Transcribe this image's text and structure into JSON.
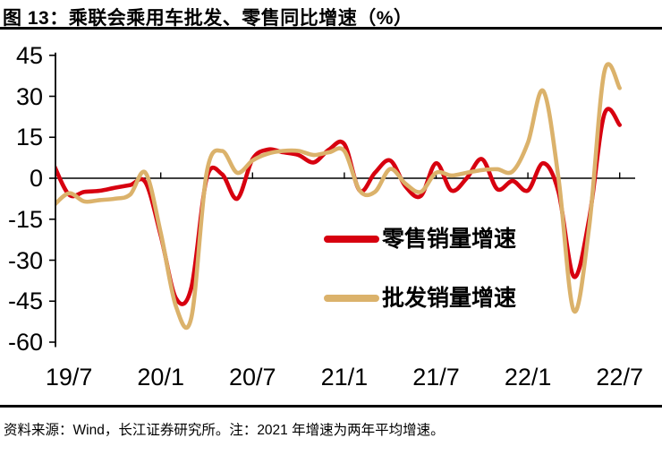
{
  "page": {
    "title": "图 13：乘联会乘用车批发、零售同比增速（%）",
    "source_note": "资料来源：Wind，长江证券研究所。注：2021 年增速为两年平均增速。"
  },
  "chart_data": {
    "type": "line",
    "title": "乘联会乘用车批发、零售同比增速（%）",
    "unit": "%",
    "x": [
      "19/6",
      "19/7",
      "19/8",
      "19/9",
      "19/10",
      "19/11",
      "19/12",
      "20/1",
      "20/2",
      "20/3",
      "20/4",
      "20/5",
      "20/6",
      "20/7",
      "20/8",
      "20/9",
      "20/10",
      "20/11",
      "20/12",
      "21/1",
      "21/2",
      "21/3",
      "21/4",
      "21/5",
      "21/6",
      "21/7",
      "21/8",
      "21/9",
      "21/10",
      "21/11",
      "21/12",
      "22/1",
      "22/2",
      "22/3",
      "22/4",
      "22/5",
      "22/6",
      "22/7"
    ],
    "x_tick_labels": [
      "19/7",
      "20/1",
      "20/7",
      "21/1",
      "21/7",
      "22/1",
      "22/7"
    ],
    "y_ticks": [
      45,
      30,
      15,
      0,
      -15,
      -30,
      -45,
      -60
    ],
    "ylim": [
      -60,
      45
    ],
    "grid": false,
    "legend_position": "inside-right",
    "line_smoothing": true,
    "series": [
      {
        "name": "零售销量增速",
        "color": "#D7000F",
        "values": [
          5,
          -6,
          -5,
          -4.6,
          -3.5,
          -2.5,
          -1.5,
          -21,
          -44,
          -40,
          0,
          1.5,
          -7.5,
          7,
          10.5,
          9.5,
          8.5,
          5.8,
          10.5,
          12.5,
          -4.5,
          2,
          6.5,
          -3,
          -6.5,
          5.5,
          -4.5,
          0,
          7,
          -4,
          -1,
          -4.5,
          5.5,
          -5,
          -36,
          -15,
          23.5,
          19.5
        ]
      },
      {
        "name": "批发销量增速",
        "color": "#DBB26B",
        "values": [
          -10,
          -5.5,
          -8.5,
          -8,
          -7.5,
          -6,
          2,
          -20,
          -47,
          -51,
          2,
          10,
          2,
          6.5,
          9,
          10,
          10,
          8.5,
          9.5,
          10,
          -4.5,
          -5,
          3.4,
          -2,
          -5,
          2,
          1,
          2,
          3,
          3.3,
          2.5,
          13,
          32,
          0,
          -48.5,
          -18,
          39,
          33
        ]
      }
    ]
  },
  "colors": {
    "axis": "#000000",
    "background": "#FFFFFF",
    "text": "#000000"
  }
}
